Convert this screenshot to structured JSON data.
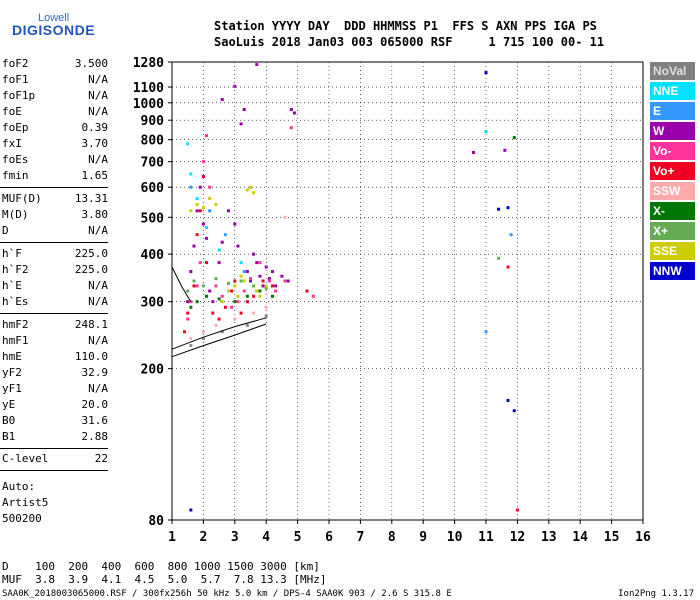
{
  "logo": {
    "line1": "Lowell",
    "line2": "DIGISONDE"
  },
  "header": {
    "line1": "Station YYYY DAY  DDD HHMMSS P1  FFS S AXN PPS IGA PS",
    "line2": "SaoLuis 2018 Jan03 003 065000 RSF     1 715 100 00- 11"
  },
  "params": [
    {
      "name": "foF2",
      "value": "3.500"
    },
    {
      "name": "foF1",
      "value": "N/A"
    },
    {
      "name": "foF1p",
      "value": "N/A"
    },
    {
      "name": "foE",
      "value": "N/A"
    },
    {
      "name": "foEp",
      "value": "0.39"
    },
    {
      "name": "fxI",
      "value": "3.70"
    },
    {
      "name": "foEs",
      "value": "N/A"
    },
    {
      "name": "fmin",
      "value": "1.65"
    },
    {
      "name": "MUF(D)",
      "value": "13.31"
    },
    {
      "name": "M(D)",
      "value": "3.80"
    },
    {
      "name": "D",
      "value": "N/A"
    },
    {
      "name": "h`F",
      "value": "225.0"
    },
    {
      "name": "h`F2",
      "value": "225.0"
    },
    {
      "name": "h`E",
      "value": "N/A"
    },
    {
      "name": "h`Es",
      "value": "N/A"
    },
    {
      "name": "hmF2",
      "value": "248.1"
    },
    {
      "name": "hmF1",
      "value": "N/A"
    },
    {
      "name": "hmE",
      "value": "110.0"
    },
    {
      "name": "yF2",
      "value": "32.9"
    },
    {
      "name": "yF1",
      "value": "N/A"
    },
    {
      "name": "yE",
      "value": "20.0"
    },
    {
      "name": "B0",
      "value": "31.6"
    },
    {
      "name": "B1",
      "value": "2.88"
    },
    {
      "name": "C-level",
      "value": "22"
    }
  ],
  "auto": {
    "line1": "Auto:",
    "line2": "Artist5",
    "line3": "500200"
  },
  "legend": [
    {
      "label": "NoVal",
      "bg": "#808080",
      "fg": "#e0e0e0"
    },
    {
      "label": "NNE",
      "bg": "#00e0ff",
      "fg": "#ffffff"
    },
    {
      "label": "E",
      "bg": "#3399ff",
      "fg": "#ffffff"
    },
    {
      "label": "W",
      "bg": "#9900aa",
      "fg": "#ffffff"
    },
    {
      "label": "Vo-",
      "bg": "#ff3399",
      "fg": "#ffffff"
    },
    {
      "label": "Vo+",
      "bg": "#ee0022",
      "fg": "#ffffff"
    },
    {
      "label": "SSW",
      "bg": "#ffaaaa",
      "fg": "#ffffff"
    },
    {
      "label": "X-",
      "bg": "#007700",
      "fg": "#ffffff"
    },
    {
      "label": "X+",
      "bg": "#66aa55",
      "fg": "#ffffff"
    },
    {
      "label": "SSE",
      "bg": "#cccc00",
      "fg": "#ffffff"
    },
    {
      "label": "NNW",
      "bg": "#0000cc",
      "fg": "#ffffff"
    }
  ],
  "bottom": {
    "d_line": "D    100  200  400  600  800 1000 1500 3000 [km]",
    "muf_line": "MUF  3.8  3.9  4.1  4.5  5.0  5.7  7.8 13.3 [MHz]"
  },
  "footer": {
    "left": "SAA0K_2018003065000.RSF / 300fx256h 50 kHz 5.0 km / DPS-4 SAA0K 903 / 2.6 S 315.8 E",
    "right": "Ion2Png 1.3.17"
  },
  "chart_data": {
    "type": "scatter",
    "xlim": [
      1,
      16
    ],
    "ylim": [
      80,
      1280
    ],
    "x_ticks": [
      1,
      2,
      3,
      4,
      5,
      6,
      7,
      8,
      9,
      10,
      11,
      12,
      13,
      14,
      15,
      16
    ],
    "y_ticks": [
      80,
      200,
      300,
      400,
      500,
      600,
      700,
      800,
      900,
      1000,
      1100,
      1280
    ],
    "grid": true,
    "y_scale": "log",
    "legend_placement": "right",
    "series": [
      {
        "name": "NNE",
        "color": "#00e0ff",
        "points": [
          [
            1.5,
            780
          ],
          [
            1.6,
            650
          ],
          [
            1.8,
            560
          ],
          [
            2.1,
            470
          ],
          [
            2.5,
            410
          ],
          [
            3.2,
            380
          ],
          [
            11.0,
            840
          ]
        ]
      },
      {
        "name": "E",
        "color": "#3399ff",
        "points": [
          [
            1.6,
            600
          ],
          [
            2.2,
            520
          ],
          [
            2.7,
            450
          ],
          [
            3.3,
            360
          ],
          [
            3.7,
            320
          ],
          [
            11.0,
            1200
          ],
          [
            11.0,
            250
          ],
          [
            11.8,
            450
          ]
        ]
      },
      {
        "name": "W",
        "color": "#9900aa",
        "points": [
          [
            1.5,
            300
          ],
          [
            1.6,
            360
          ],
          [
            1.7,
            420
          ],
          [
            1.8,
            520
          ],
          [
            1.9,
            600
          ],
          [
            2.0,
            480
          ],
          [
            2.1,
            440
          ],
          [
            2.2,
            320
          ],
          [
            2.3,
            300
          ],
          [
            2.5,
            380
          ],
          [
            2.6,
            430
          ],
          [
            2.8,
            520
          ],
          [
            3.0,
            480
          ],
          [
            3.1,
            420
          ],
          [
            3.2,
            880
          ],
          [
            3.3,
            960
          ],
          [
            3.4,
            360
          ],
          [
            3.5,
            340
          ],
          [
            3.6,
            400
          ],
          [
            3.7,
            380
          ],
          [
            3.8,
            350
          ],
          [
            3.9,
            330
          ],
          [
            4.0,
            370
          ],
          [
            4.1,
            345
          ],
          [
            4.2,
            360
          ],
          [
            4.3,
            330
          ],
          [
            4.5,
            350
          ],
          [
            4.7,
            340
          ],
          [
            4.8,
            960
          ],
          [
            4.9,
            940
          ],
          [
            3.0,
            1105
          ],
          [
            2.6,
            1020
          ],
          [
            3.7,
            1260
          ],
          [
            10.6,
            740
          ],
          [
            11.6,
            750
          ]
        ]
      },
      {
        "name": "Vo-",
        "color": "#ff3399",
        "points": [
          [
            1.5,
            270
          ],
          [
            1.6,
            300
          ],
          [
            1.8,
            330
          ],
          [
            1.9,
            380
          ],
          [
            2.0,
            700
          ],
          [
            2.1,
            820
          ],
          [
            2.2,
            600
          ],
          [
            2.4,
            330
          ],
          [
            2.6,
            310
          ],
          [
            2.9,
            290
          ],
          [
            3.1,
            300
          ],
          [
            3.3,
            320
          ],
          [
            3.5,
            345
          ],
          [
            3.8,
            380
          ],
          [
            4.1,
            340
          ],
          [
            4.3,
            320
          ],
          [
            4.6,
            340
          ],
          [
            4.8,
            860
          ],
          [
            5.5,
            310
          ]
        ]
      },
      {
        "name": "Vo+",
        "color": "#ee0022",
        "points": [
          [
            1.4,
            250
          ],
          [
            1.5,
            280
          ],
          [
            1.7,
            330
          ],
          [
            1.8,
            450
          ],
          [
            1.9,
            520
          ],
          [
            2.0,
            640
          ],
          [
            2.1,
            380
          ],
          [
            2.3,
            280
          ],
          [
            2.5,
            270
          ],
          [
            2.7,
            290
          ],
          [
            2.9,
            320
          ],
          [
            3.0,
            340
          ],
          [
            3.2,
            280
          ],
          [
            3.4,
            300
          ],
          [
            3.6,
            310
          ],
          [
            3.9,
            340
          ],
          [
            4.2,
            330
          ],
          [
            5.3,
            320
          ],
          [
            11.7,
            370
          ],
          [
            12.0,
            85
          ]
        ]
      },
      {
        "name": "SSW",
        "color": "#ffaaaa",
        "points": [
          [
            1.6,
            240
          ],
          [
            2.0,
            250
          ],
          [
            2.4,
            260
          ],
          [
            3.0,
            270
          ],
          [
            3.6,
            280
          ],
          [
            4.0,
            290
          ],
          [
            4.6,
            500
          ]
        ]
      },
      {
        "name": "X-",
        "color": "#007700",
        "points": [
          [
            1.6,
            290
          ],
          [
            1.8,
            300
          ],
          [
            2.1,
            310
          ],
          [
            2.5,
            305
          ],
          [
            3.0,
            300
          ],
          [
            3.4,
            310
          ],
          [
            3.8,
            320
          ],
          [
            4.2,
            310
          ],
          [
            11.9,
            810
          ]
        ]
      },
      {
        "name": "X+",
        "color": "#66aa55",
        "points": [
          [
            1.5,
            320
          ],
          [
            1.7,
            340
          ],
          [
            2.0,
            330
          ],
          [
            2.4,
            345
          ],
          [
            2.8,
            335
          ],
          [
            3.2,
            340
          ],
          [
            3.6,
            330
          ],
          [
            4.0,
            325
          ],
          [
            11.4,
            390
          ]
        ]
      },
      {
        "name": "SSE",
        "color": "#cccc00",
        "points": [
          [
            1.6,
            520
          ],
          [
            1.8,
            540
          ],
          [
            2.0,
            530
          ],
          [
            2.2,
            560
          ],
          [
            2.4,
            540
          ],
          [
            2.6,
            300
          ],
          [
            2.8,
            320
          ],
          [
            3.0,
            330
          ],
          [
            3.1,
            310
          ],
          [
            3.2,
            350
          ],
          [
            3.3,
            340
          ],
          [
            3.4,
            590
          ],
          [
            3.5,
            600
          ],
          [
            3.6,
            580
          ],
          [
            3.7,
            320
          ],
          [
            3.8,
            310
          ],
          [
            4.0,
            330
          ]
        ]
      },
      {
        "name": "NNW",
        "color": "#0000cc",
        "points": [
          [
            11.0,
            1200
          ],
          [
            11.4,
            525
          ],
          [
            11.7,
            530
          ],
          [
            11.7,
            165
          ],
          [
            11.9,
            155
          ],
          [
            1.6,
            85
          ]
        ]
      },
      {
        "name": "NoVal",
        "color": "#888888",
        "points": [
          [
            1.6,
            230
          ],
          [
            2.0,
            240
          ],
          [
            2.6,
            250
          ],
          [
            3.4,
            260
          ],
          [
            4.0,
            275
          ]
        ]
      }
    ],
    "traces": [
      {
        "name": "trace-1",
        "color": "#000000",
        "points": [
          [
            1.0,
            215
          ],
          [
            2.0,
            230
          ],
          [
            3.0,
            245
          ],
          [
            4.0,
            262
          ]
        ]
      },
      {
        "name": "trace-2",
        "color": "#000000",
        "points": [
          [
            1.0,
            225
          ],
          [
            2.0,
            242
          ],
          [
            3.0,
            258
          ],
          [
            4.0,
            272
          ]
        ]
      },
      {
        "name": "trace-3",
        "color": "#000000",
        "points": [
          [
            1.0,
            370
          ],
          [
            1.3,
            330
          ],
          [
            1.6,
            300
          ]
        ]
      }
    ]
  }
}
